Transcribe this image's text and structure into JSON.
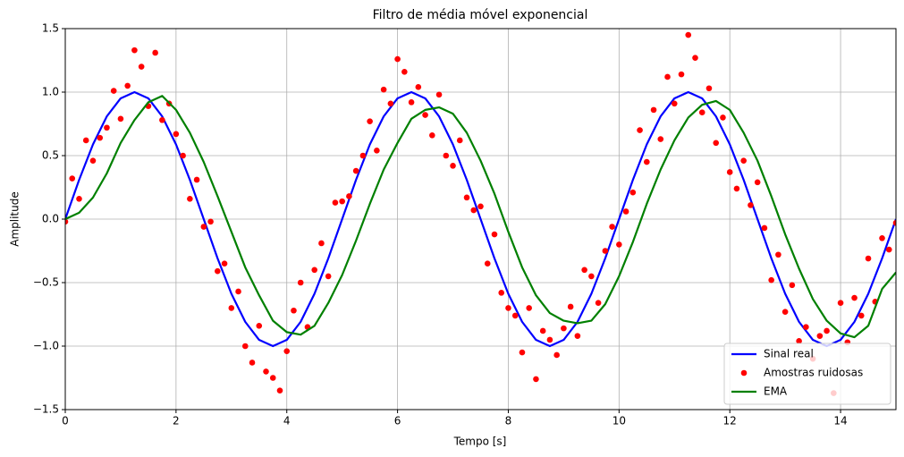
{
  "chart_data": {
    "type": "line",
    "title": "Filtro de média móvel exponencial",
    "xlabel": "Tempo [s]",
    "ylabel": "Amplitude",
    "xlim": [
      0,
      15
    ],
    "ylim": [
      -1.5,
      1.5
    ],
    "xticks": [
      0,
      2,
      4,
      6,
      8,
      10,
      12,
      14
    ],
    "yticks": [
      {
        "value": -1.5,
        "label": "−1.5"
      },
      {
        "value": -1.0,
        "label": "−1.0"
      },
      {
        "value": -0.5,
        "label": "−0.5"
      },
      {
        "value": 0.0,
        "label": "0.0"
      },
      {
        "value": 0.5,
        "label": "0.5"
      },
      {
        "value": 1.0,
        "label": "1.0"
      },
      {
        "value": 1.5,
        "label": "1.5"
      }
    ],
    "grid": true,
    "legend": "lower right",
    "series": [
      {
        "name": "Sinal real",
        "color": "#0000ff",
        "kind": "line",
        "x": [
          0,
          0.25,
          0.5,
          0.75,
          1,
          1.25,
          1.5,
          1.75,
          2,
          2.25,
          2.5,
          2.75,
          3,
          3.25,
          3.5,
          3.75,
          4,
          4.25,
          4.5,
          4.75,
          5,
          5.25,
          5.5,
          5.75,
          6,
          6.25,
          6.5,
          6.75,
          7,
          7.25,
          7.5,
          7.75,
          8,
          8.25,
          8.5,
          8.75,
          9,
          9.25,
          9.5,
          9.75,
          10,
          10.25,
          10.5,
          10.75,
          11,
          11.25,
          11.5,
          11.75,
          12,
          12.25,
          12.5,
          12.75,
          13,
          13.25,
          13.5,
          13.75,
          14,
          14.25,
          14.5,
          14.75,
          15
        ],
        "values": [
          0,
          0.309,
          0.588,
          0.809,
          0.951,
          1,
          0.951,
          0.809,
          0.588,
          0.309,
          0,
          -0.309,
          -0.588,
          -0.809,
          -0.951,
          -1,
          -0.951,
          -0.809,
          -0.588,
          -0.309,
          0,
          0.309,
          0.588,
          0.809,
          0.951,
          1,
          0.951,
          0.809,
          0.588,
          0.309,
          0,
          -0.309,
          -0.588,
          -0.809,
          -0.951,
          -1,
          -0.951,
          -0.809,
          -0.588,
          -0.309,
          0,
          0.309,
          0.588,
          0.809,
          0.951,
          1,
          0.951,
          0.809,
          0.588,
          0.309,
          0,
          -0.309,
          -0.588,
          -0.809,
          -0.951,
          -1,
          -0.951,
          -0.809,
          -0.588,
          -0.309,
          0
        ]
      },
      {
        "name": "Amostras ruidosas",
        "color": "#ff0000",
        "kind": "scatter",
        "x": [
          0,
          0.125,
          0.25,
          0.375,
          0.5,
          0.625,
          0.75,
          0.875,
          1,
          1.125,
          1.25,
          1.375,
          1.5,
          1.625,
          1.75,
          1.875,
          2,
          2.125,
          2.25,
          2.375,
          2.5,
          2.625,
          2.75,
          2.875,
          3,
          3.125,
          3.25,
          3.375,
          3.5,
          3.625,
          3.75,
          3.875,
          4,
          4.125,
          4.25,
          4.375,
          4.5,
          4.625,
          4.75,
          4.875,
          5,
          5.125,
          5.25,
          5.375,
          5.5,
          5.625,
          5.75,
          5.875,
          6,
          6.125,
          6.25,
          6.375,
          6.5,
          6.625,
          6.75,
          6.875,
          7,
          7.125,
          7.25,
          7.375,
          7.5,
          7.625,
          7.75,
          7.875,
          8,
          8.125,
          8.25,
          8.375,
          8.5,
          8.625,
          8.75,
          8.875,
          9,
          9.125,
          9.25,
          9.375,
          9.5,
          9.625,
          9.75,
          9.875,
          10,
          10.125,
          10.25,
          10.375,
          10.5,
          10.625,
          10.75,
          10.875,
          11,
          11.125,
          11.25,
          11.375,
          11.5,
          11.625,
          11.75,
          11.875,
          12,
          12.125,
          12.25,
          12.375,
          12.5,
          12.625,
          12.75,
          12.875,
          13,
          13.125,
          13.25,
          13.375,
          13.5,
          13.625,
          13.75,
          13.875,
          14,
          14.125,
          14.25,
          14.375,
          14.5,
          14.625,
          14.75,
          14.875,
          15
        ],
        "values": [
          -0.02,
          0.32,
          0.16,
          0.62,
          0.46,
          0.64,
          0.72,
          1.01,
          0.79,
          1.05,
          1.33,
          1.2,
          0.89,
          1.31,
          0.78,
          0.91,
          0.67,
          0.5,
          0.16,
          0.31,
          -0.06,
          -0.02,
          -0.41,
          -0.35,
          -0.7,
          -0.57,
          -1.0,
          -1.13,
          -0.84,
          -1.2,
          -1.25,
          -1.35,
          -1.04,
          -0.72,
          -0.5,
          -0.85,
          -0.4,
          -0.19,
          -0.45,
          0.13,
          0.14,
          0.18,
          0.38,
          0.5,
          0.77,
          0.54,
          1.02,
          0.91,
          1.26,
          1.16,
          0.92,
          1.04,
          0.82,
          0.66,
          0.98,
          0.5,
          0.42,
          0.62,
          0.17,
          0.07,
          0.1,
          -0.35,
          -0.12,
          -0.58,
          -0.7,
          -0.76,
          -1.05,
          -0.7,
          -1.26,
          -0.88,
          -0.95,
          -1.07,
          -0.86,
          -0.69,
          -0.92,
          -0.4,
          -0.45,
          -0.66,
          -0.25,
          -0.06,
          -0.2,
          0.06,
          0.21,
          0.7,
          0.45,
          0.86,
          0.63,
          1.12,
          0.91,
          1.14,
          1.45,
          1.27,
          0.84,
          1.03,
          0.6,
          0.8,
          0.37,
          0.24,
          0.46,
          0.11,
          0.29,
          -0.07,
          -0.48,
          -0.28,
          -0.73,
          -0.52,
          -0.96,
          -0.85,
          -1.1,
          -0.92,
          -0.88,
          -1.37,
          -0.66,
          -0.97,
          -0.62,
          -0.76,
          -0.31,
          -0.65,
          -0.15,
          -0.24,
          -0.03
        ]
      },
      {
        "name": "EMA",
        "color": "#008000",
        "kind": "line",
        "x": [
          0,
          0.25,
          0.5,
          0.75,
          1,
          1.25,
          1.5,
          1.75,
          2,
          2.25,
          2.5,
          2.75,
          3,
          3.25,
          3.5,
          3.75,
          4,
          4.25,
          4.5,
          4.75,
          5,
          5.25,
          5.5,
          5.75,
          6,
          6.25,
          6.5,
          6.75,
          7,
          7.25,
          7.5,
          7.75,
          8,
          8.25,
          8.5,
          8.75,
          9,
          9.25,
          9.5,
          9.75,
          10,
          10.25,
          10.5,
          10.75,
          11,
          11.25,
          11.5,
          11.75,
          12,
          12.25,
          12.5,
          12.75,
          13,
          13.25,
          13.5,
          13.75,
          14,
          14.25,
          14.5,
          14.75,
          15
        ],
        "values": [
          0,
          0.05,
          0.17,
          0.36,
          0.6,
          0.78,
          0.92,
          0.97,
          0.86,
          0.68,
          0.45,
          0.18,
          -0.1,
          -0.38,
          -0.6,
          -0.8,
          -0.89,
          -0.91,
          -0.84,
          -0.66,
          -0.44,
          -0.17,
          0.12,
          0.39,
          0.6,
          0.79,
          0.86,
          0.88,
          0.83,
          0.68,
          0.46,
          0.2,
          -0.1,
          -0.38,
          -0.6,
          -0.74,
          -0.8,
          -0.82,
          -0.8,
          -0.67,
          -0.45,
          -0.18,
          0.12,
          0.39,
          0.62,
          0.8,
          0.9,
          0.93,
          0.86,
          0.68,
          0.46,
          0.18,
          -0.12,
          -0.39,
          -0.63,
          -0.8,
          -0.9,
          -0.93,
          -0.84,
          -0.55,
          -0.42
        ]
      }
    ]
  }
}
